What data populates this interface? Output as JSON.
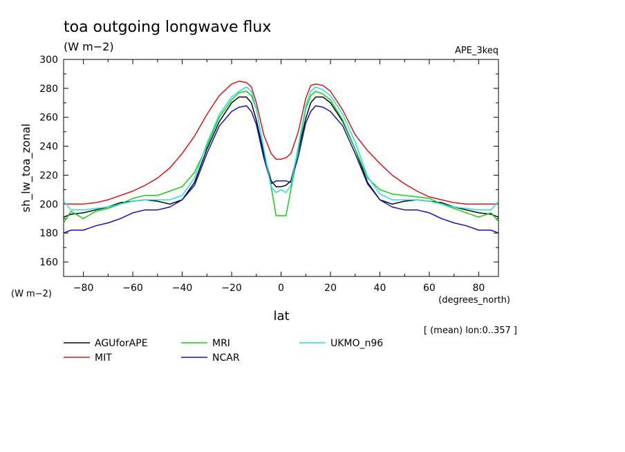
{
  "chart_data": {
    "type": "line",
    "title": "toa outgoing longwave flux",
    "units": "(W m−2)",
    "experiment": "APE_3keq",
    "ylabel": "sh_lw_toa_zonal",
    "ylabel_units": "(W m−2)",
    "xlabel": "lat",
    "xlabel_units": "(degrees_north)",
    "subtitle": "[ (mean) lon:0..357 ]",
    "xlim": [
      -88,
      88
    ],
    "ylim": [
      150,
      300
    ],
    "xticks": [
      -80,
      -60,
      -40,
      -20,
      0,
      20,
      40,
      60,
      80
    ],
    "yticks": [
      160,
      180,
      200,
      220,
      240,
      260,
      280,
      300
    ],
    "legend_placement": "bottom",
    "x": [
      -88,
      -85,
      -80,
      -75,
      -70,
      -65,
      -60,
      -55,
      -50,
      -45,
      -40,
      -35,
      -30,
      -25,
      -20,
      -17,
      -14,
      -12,
      -10,
      -7,
      -4,
      -2,
      0,
      2,
      4,
      7,
      10,
      12,
      14,
      17,
      20,
      25,
      30,
      35,
      40,
      45,
      50,
      55,
      60,
      65,
      70,
      75,
      80,
      85,
      88
    ],
    "series": [
      {
        "name": "AGUforAPE",
        "color": "#000000",
        "values": [
          191,
          193,
          194,
          196,
          198,
          201,
          202,
          203,
          202,
          200,
          203,
          215,
          238,
          257,
          270,
          274,
          274,
          270,
          258,
          235,
          216,
          212,
          212,
          213,
          216,
          237,
          259,
          270,
          274,
          274,
          270,
          257,
          238,
          215,
          203,
          200,
          202,
          203,
          202,
          201,
          198,
          196,
          194,
          193,
          191
        ]
      },
      {
        "name": "MIT",
        "color": "#e01010",
        "values": [
          200,
          200,
          200,
          201,
          203,
          206,
          209,
          213,
          218,
          225,
          235,
          247,
          262,
          275,
          283,
          285,
          284,
          281,
          270,
          248,
          235,
          231,
          231,
          232,
          235,
          250,
          273,
          282,
          283,
          282,
          278,
          265,
          248,
          237,
          228,
          220,
          214,
          209,
          205,
          203,
          201,
          200,
          200,
          200,
          200
        ]
      },
      {
        "name": "MRI",
        "color": "#10d010",
        "values": [
          187,
          195,
          190,
          195,
          197,
          200,
          204,
          206,
          206,
          209,
          212,
          222,
          240,
          260,
          272,
          277,
          278,
          275,
          266,
          238,
          212,
          192,
          192,
          192,
          210,
          238,
          266,
          275,
          278,
          276,
          272,
          258,
          238,
          218,
          210,
          207,
          206,
          205,
          204,
          200,
          197,
          194,
          191,
          194,
          188
        ]
      },
      {
        "name": "NCAR",
        "color": "#1010c0",
        "values": [
          180,
          182,
          182,
          185,
          187,
          190,
          194,
          196,
          196,
          198,
          203,
          213,
          235,
          254,
          264,
          267,
          268,
          264,
          255,
          232,
          214,
          216,
          216,
          216,
          215,
          233,
          256,
          264,
          268,
          267,
          264,
          254,
          235,
          214,
          203,
          198,
          196,
          196,
          194,
          190,
          187,
          185,
          182,
          182,
          180
        ]
      },
      {
        "name": "UKMO_n96",
        "color": "#20e0e0",
        "values": [
          202,
          196,
          196,
          197,
          198,
          200,
          202,
          203,
          203,
          203,
          206,
          218,
          242,
          262,
          274,
          278,
          281,
          278,
          266,
          238,
          212,
          208,
          210,
          208,
          213,
          240,
          268,
          278,
          281,
          279,
          275,
          262,
          243,
          219,
          207,
          203,
          203,
          203,
          202,
          200,
          198,
          197,
          196,
          196,
          202
        ]
      }
    ]
  }
}
